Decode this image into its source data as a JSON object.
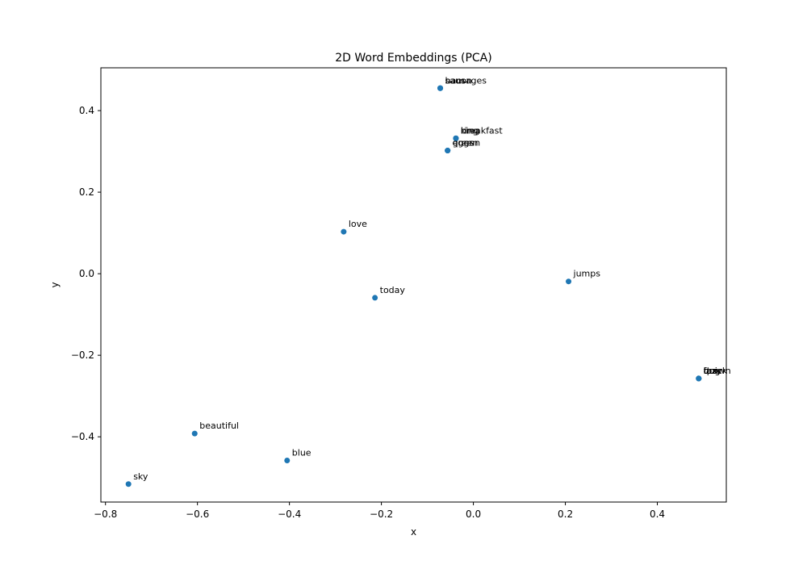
{
  "chart_data": {
    "type": "scatter",
    "title": "2D Word Embeddings (PCA)",
    "xlabel": "x",
    "ylabel": "y",
    "xlim": [
      -0.81,
      0.55
    ],
    "ylim": [
      -0.56,
      0.505
    ],
    "xticks": [
      -0.8,
      -0.6,
      -0.4,
      -0.2,
      0.0,
      0.2,
      0.4
    ],
    "yticks": [
      -0.4,
      -0.2,
      0.0,
      0.2,
      0.4
    ],
    "xtick_labels": [
      "−0.8",
      "−0.6",
      "−0.4",
      "−0.2",
      "0.0",
      "0.2",
      "0.4"
    ],
    "ytick_labels": [
      "−0.4",
      "−0.2",
      "0.0",
      "0.2",
      "0.4"
    ],
    "grid": false,
    "marker_color": "#1f77b4",
    "points": [
      {
        "label": "bacon",
        "x": -0.072,
        "y": 0.455
      },
      {
        "label": "sausages",
        "x": -0.072,
        "y": 0.455
      },
      {
        "label": "ham",
        "x": -0.072,
        "y": 0.455
      },
      {
        "label": "breakfast",
        "x": -0.038,
        "y": 0.332
      },
      {
        "label": "king",
        "x": -0.038,
        "y": 0.332
      },
      {
        "label": "ring",
        "x": -0.038,
        "y": 0.332
      },
      {
        "label": "eggs",
        "x": -0.056,
        "y": 0.302
      },
      {
        "label": "green",
        "x": -0.056,
        "y": 0.302
      },
      {
        "label": "queen",
        "x": -0.056,
        "y": 0.302
      },
      {
        "label": "love",
        "x": -0.282,
        "y": 0.103
      },
      {
        "label": "today",
        "x": -0.214,
        "y": -0.059
      },
      {
        "label": "jumps",
        "x": 0.207,
        "y": -0.019
      },
      {
        "label": "fox",
        "x": 0.49,
        "y": -0.257
      },
      {
        "label": "brown",
        "x": 0.49,
        "y": -0.257
      },
      {
        "label": "lazy",
        "x": 0.49,
        "y": -0.257
      },
      {
        "label": "dog",
        "x": 0.49,
        "y": -0.257
      },
      {
        "label": "quick",
        "x": 0.49,
        "y": -0.257
      },
      {
        "label": "beautiful",
        "x": -0.606,
        "y": -0.392
      },
      {
        "label": "blue",
        "x": -0.405,
        "y": -0.458
      },
      {
        "label": "sky",
        "x": -0.75,
        "y": -0.516
      }
    ]
  }
}
